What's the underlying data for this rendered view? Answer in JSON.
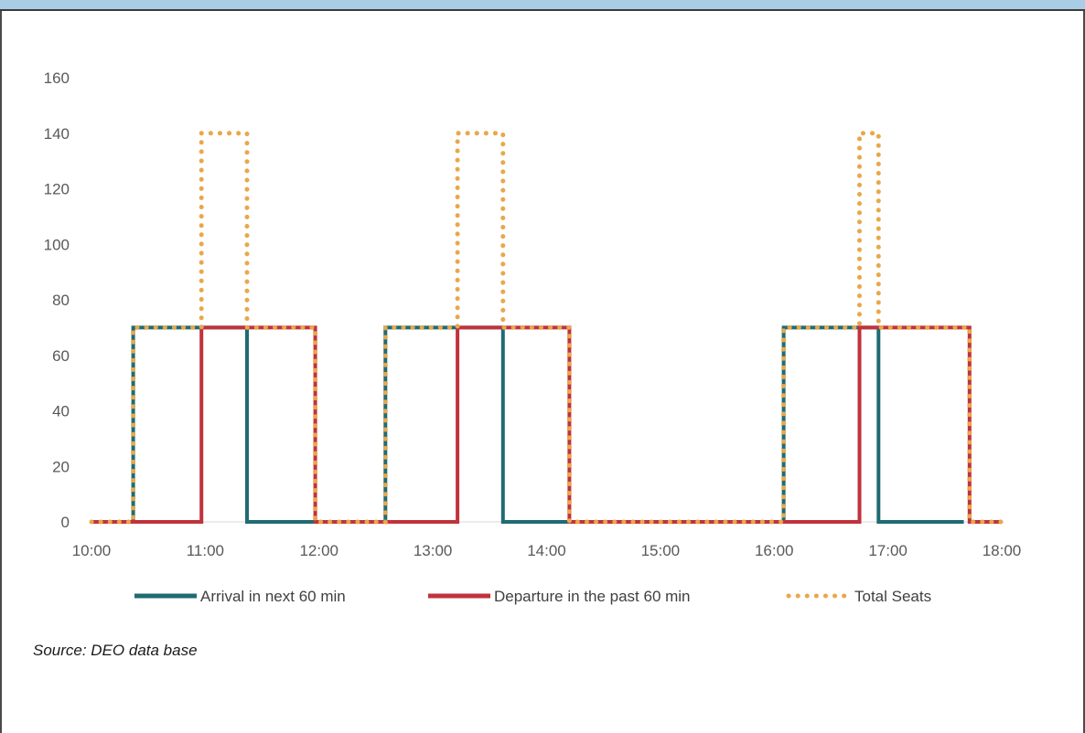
{
  "source_note": "Source: DEO data base",
  "chart_data": {
    "type": "line",
    "title": "",
    "xlabel": "",
    "ylabel": "",
    "ylim": [
      0,
      160
    ],
    "xlim": [
      "10:00",
      "18:00"
    ],
    "y_ticks": [
      "0",
      "20",
      "40",
      "60",
      "80",
      "100",
      "120",
      "140",
      "160"
    ],
    "x_ticks": [
      "10:00",
      "11:00",
      "12:00",
      "13:00",
      "14:00",
      "15:00",
      "16:00",
      "17:00",
      "18:00"
    ],
    "grid": false,
    "legend_position": "bottom",
    "series": [
      {
        "name": "Arrival in next 60 min",
        "color": "#1f6b73",
        "style": "solid",
        "x": [
          "10:00",
          "10:22",
          "10:22",
          "11:22",
          "11:22",
          "12:35",
          "12:35",
          "13:37",
          "13:37",
          "16:05",
          "16:05",
          "16:55",
          "16:55",
          "17:40"
        ],
        "y": [
          0,
          0,
          70,
          70,
          0,
          0,
          70,
          70,
          0,
          0,
          70,
          70,
          0,
          0
        ]
      },
      {
        "name": "Departure in the past 60 min",
        "color": "#c0323c",
        "style": "solid",
        "x": [
          "10:00",
          "10:58",
          "10:58",
          "11:58",
          "11:58",
          "13:13",
          "13:13",
          "14:12",
          "14:12",
          "16:45",
          "16:45",
          "17:43",
          "17:43",
          "18:00"
        ],
        "y": [
          0,
          0,
          70,
          70,
          0,
          0,
          70,
          70,
          0,
          0,
          70,
          70,
          0,
          0
        ]
      },
      {
        "name": "Total Seats",
        "color": "#e8a84a",
        "style": "dotted",
        "x": [
          "10:00",
          "10:22",
          "10:22",
          "10:58",
          "10:58",
          "11:22",
          "11:22",
          "11:58",
          "11:58",
          "12:35",
          "12:35",
          "13:13",
          "13:13",
          "13:37",
          "13:37",
          "14:12",
          "14:12",
          "16:05",
          "16:05",
          "16:45",
          "16:45",
          "16:55",
          "16:55",
          "17:43",
          "17:43",
          "18:00"
        ],
        "y": [
          0,
          0,
          70,
          70,
          140,
          140,
          70,
          70,
          0,
          0,
          70,
          70,
          140,
          140,
          70,
          70,
          0,
          0,
          70,
          70,
          140,
          140,
          70,
          70,
          0,
          0
        ]
      }
    ]
  }
}
